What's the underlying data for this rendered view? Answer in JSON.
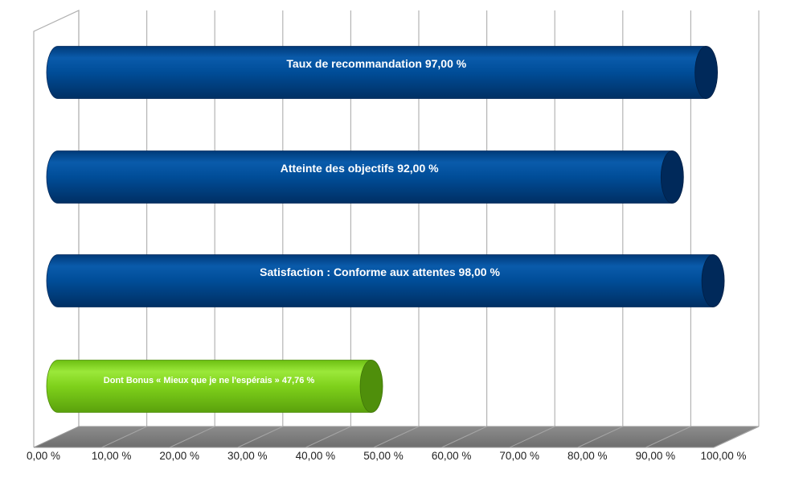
{
  "chart_data": {
    "type": "bar",
    "orientation": "horizontal",
    "style": "3d-cylinder",
    "grid": true,
    "xlim": [
      0,
      100
    ],
    "x_ticks": [
      "0,00 %",
      "10,00 %",
      "20,00 %",
      "30,00 %",
      "40,00 %",
      "50,00 %",
      "60,00 %",
      "70,00 %",
      "80,00 %",
      "90,00 %",
      "100,00 %"
    ],
    "categories": [
      "Taux de recommandation",
      "Atteinte des objectifs",
      "Satisfaction : Conforme aux attentes",
      "Dont Bonus « Mieux que je ne l'espérais »"
    ],
    "values": [
      97,
      92,
      98,
      47.76
    ],
    "labels": [
      "Taux de recommandation 97,00 %",
      "Atteinte des objectifs 92,00 %",
      "Satisfaction : Conforme aux attentes 98,00 %",
      "Dont Bonus « Mieux que je ne l'espérais » 47,76 %"
    ],
    "colors": [
      "#004a94",
      "#004a94",
      "#004a94",
      "#7fd11b"
    ]
  }
}
